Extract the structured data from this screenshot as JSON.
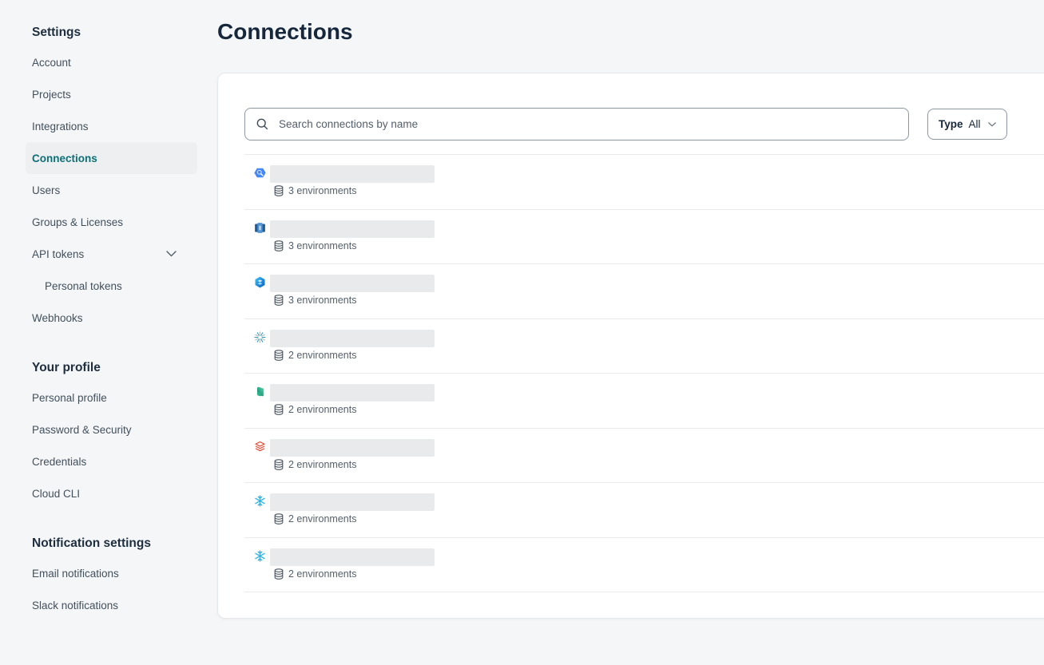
{
  "page": {
    "title": "Connections"
  },
  "sidebar": {
    "sections": [
      {
        "heading": "Settings",
        "items": [
          {
            "label": "Account"
          },
          {
            "label": "Projects"
          },
          {
            "label": "Integrations"
          },
          {
            "label": "Connections",
            "active": true
          },
          {
            "label": "Users"
          },
          {
            "label": "Groups & Licenses"
          },
          {
            "label": "API tokens",
            "chevron": true
          },
          {
            "label": "Personal tokens",
            "indent": true
          },
          {
            "label": "Webhooks"
          }
        ]
      },
      {
        "heading": "Your profile",
        "items": [
          {
            "label": "Personal profile"
          },
          {
            "label": "Password & Security"
          },
          {
            "label": "Credentials"
          },
          {
            "label": "Cloud CLI"
          }
        ]
      },
      {
        "heading": "Notification settings",
        "items": [
          {
            "label": "Email notifications"
          },
          {
            "label": "Slack notifications"
          }
        ]
      }
    ]
  },
  "toolbar": {
    "search_placeholder": "Search connections by name",
    "type_filter": {
      "label": "Type",
      "value": "All"
    }
  },
  "connections": {
    "rows": [
      {
        "icon": "bigquery",
        "name_redacted": true,
        "environments_label": "3 environments"
      },
      {
        "icon": "redshift",
        "name_redacted": true,
        "environments_label": "3 environments"
      },
      {
        "icon": "synapse",
        "name_redacted": true,
        "environments_label": "3 environments"
      },
      {
        "icon": "starburst",
        "name_redacted": true,
        "environments_label": "2 environments"
      },
      {
        "icon": "fabric",
        "name_redacted": true,
        "environments_label": "2 environments"
      },
      {
        "icon": "databricks",
        "name_redacted": true,
        "environments_label": "2 environments"
      },
      {
        "icon": "snowflake",
        "name_redacted": true,
        "environments_label": "2 environments"
      },
      {
        "icon": "snowflake",
        "name_redacted": true,
        "environments_label": "2 environments"
      }
    ]
  },
  "colors": {
    "accent_teal": "#0e7077",
    "page_background": "#f5f6f8",
    "card_background": "#ffffff",
    "divider": "#e8eaed",
    "redacted_name_gray": "#e9eaec",
    "bigquery_blue": "#4387fd",
    "redshift_blue": "#5294cf",
    "synapse_blue": "#0a5bbf",
    "starburst_teal": "#2f9ab3",
    "fabric_green": "#2ab388",
    "databricks_red": "#e8472f",
    "snowflake_blue": "#29b5e8"
  }
}
